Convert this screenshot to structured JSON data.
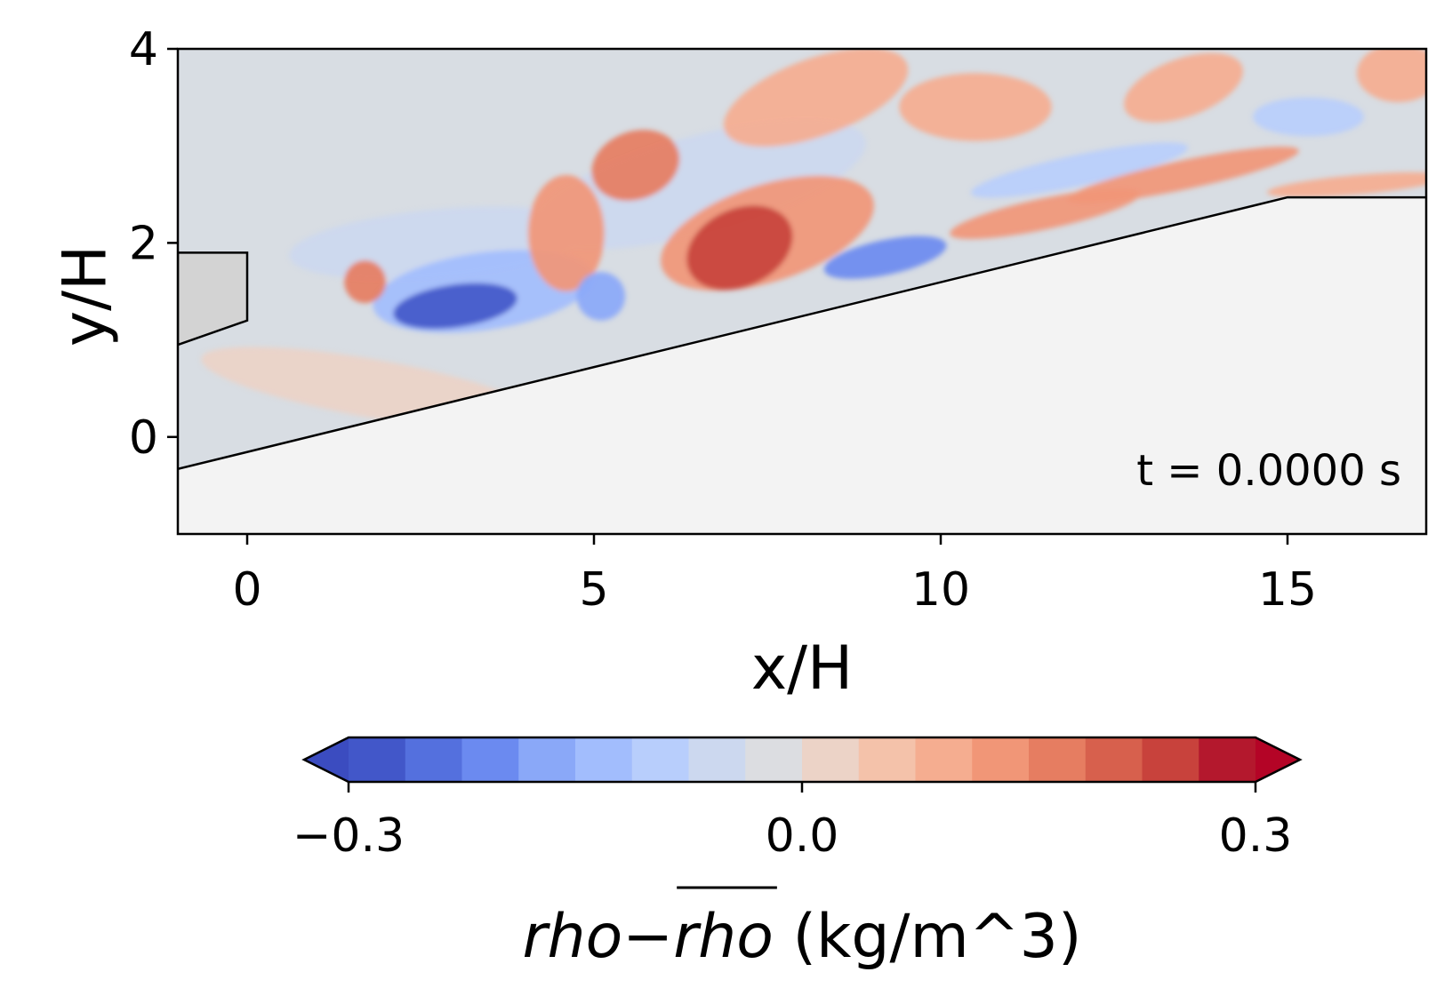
{
  "chart_data": {
    "type": "heatmap",
    "xlabel": "x/H",
    "ylabel": "y/H",
    "xlim": [
      -1,
      17
    ],
    "ylim": [
      -1,
      4
    ],
    "xticks": [
      "0",
      "5",
      "10",
      "15"
    ],
    "xtick_values": [
      0,
      5,
      10,
      15
    ],
    "yticks": [
      "4",
      "2",
      "0"
    ],
    "ytick_values": [
      4,
      2,
      0
    ],
    "annotation": "t = 0.0000 s",
    "colormap": "coolwarm",
    "colorbar": {
      "label_italic_1": "rho",
      "label_minus": "−",
      "label_italic_2": "rho",
      "label_units": " (kg/m^3)",
      "range": [
        -0.3,
        0.3
      ],
      "ticks": [
        "−0.3",
        "0.0",
        "0.3"
      ],
      "tick_values": [
        -0.3,
        0.0,
        0.3
      ],
      "extend": "both",
      "levels": [
        "#4257c9",
        "#5470de",
        "#6b8af0",
        "#8aa8f8",
        "#a2bdfd",
        "#b8cefc",
        "#ccd8ef",
        "#dcdde1",
        "#ecd3c7",
        "#f4c2aa",
        "#f5ad90",
        "#f19677",
        "#e67d61",
        "#d7604d",
        "#c8423c",
        "#b4182d"
      ],
      "under_color": "#3b4cc0",
      "over_color": "#b40426"
    },
    "geometry": {
      "ramp": [
        [
          -1,
          -0.33
        ],
        [
          15,
          2.47
        ],
        [
          17,
          2.47
        ]
      ],
      "step": [
        [
          -1,
          0.95
        ],
        [
          0,
          1.2
        ],
        [
          0,
          1.9
        ],
        [
          -1,
          1.9
        ]
      ],
      "solid_fill": "#f3f3f3",
      "step_fill": "#d3d3d3",
      "background": "#d8dde3"
    },
    "features": [
      {
        "x": 3.0,
        "y": 1.35,
        "rx": 0.9,
        "ry": 0.22,
        "angle": -8,
        "v": -0.27
      },
      {
        "x": 3.4,
        "y": 1.5,
        "rx": 1.6,
        "ry": 0.4,
        "angle": -8,
        "v": -0.12
      },
      {
        "x": 1.7,
        "y": 1.6,
        "rx": 0.3,
        "ry": 0.22,
        "angle": 0,
        "v": 0.15
      },
      {
        "x": 5.1,
        "y": 1.45,
        "rx": 0.35,
        "ry": 0.25,
        "angle": 0,
        "v": -0.18
      },
      {
        "x": 4.6,
        "y": 2.1,
        "rx": 0.55,
        "ry": 0.6,
        "angle": 0,
        "v": 0.12
      },
      {
        "x": 5.6,
        "y": 2.8,
        "rx": 0.65,
        "ry": 0.35,
        "angle": -20,
        "v": 0.16
      },
      {
        "x": 7.1,
        "y": 1.95,
        "rx": 0.8,
        "ry": 0.4,
        "angle": -25,
        "v": 0.26
      },
      {
        "x": 7.5,
        "y": 2.1,
        "rx": 1.6,
        "ry": 0.5,
        "angle": -18,
        "v": 0.14
      },
      {
        "x": 9.2,
        "y": 1.85,
        "rx": 0.9,
        "ry": 0.18,
        "angle": -12,
        "v": -0.2
      },
      {
        "x": 8.2,
        "y": 3.5,
        "rx": 1.4,
        "ry": 0.4,
        "angle": -20,
        "v": 0.08
      },
      {
        "x": 11.5,
        "y": 2.3,
        "rx": 1.4,
        "ry": 0.16,
        "angle": -12,
        "v": 0.13
      },
      {
        "x": 13.5,
        "y": 2.7,
        "rx": 1.7,
        "ry": 0.15,
        "angle": -12,
        "v": 0.14
      },
      {
        "x": 12.0,
        "y": 2.75,
        "rx": 1.6,
        "ry": 0.16,
        "angle": -12,
        "v": -0.1
      },
      {
        "x": 10.5,
        "y": 3.4,
        "rx": 1.1,
        "ry": 0.35,
        "angle": 0,
        "v": 0.08
      },
      {
        "x": 13.5,
        "y": 3.6,
        "rx": 0.9,
        "ry": 0.3,
        "angle": -20,
        "v": 0.09
      },
      {
        "x": 15.3,
        "y": 3.3,
        "rx": 0.8,
        "ry": 0.2,
        "angle": 0,
        "v": -0.08
      },
      {
        "x": 16.6,
        "y": 3.75,
        "rx": 0.6,
        "ry": 0.3,
        "angle": 0,
        "v": 0.11
      },
      {
        "x": 16.0,
        "y": 2.6,
        "rx": 1.3,
        "ry": 0.1,
        "angle": -5,
        "v": 0.1
      },
      {
        "x": 6.5,
        "y": 2.6,
        "rx": 2.5,
        "ry": 0.5,
        "angle": -15,
        "v": -0.06
      },
      {
        "x": 2.8,
        "y": 2.0,
        "rx": 2.2,
        "ry": 0.35,
        "angle": -5,
        "v": -0.05
      },
      {
        "x": 1.8,
        "y": 0.5,
        "rx": 2.5,
        "ry": 0.3,
        "angle": 10,
        "v": 0.03
      }
    ]
  }
}
